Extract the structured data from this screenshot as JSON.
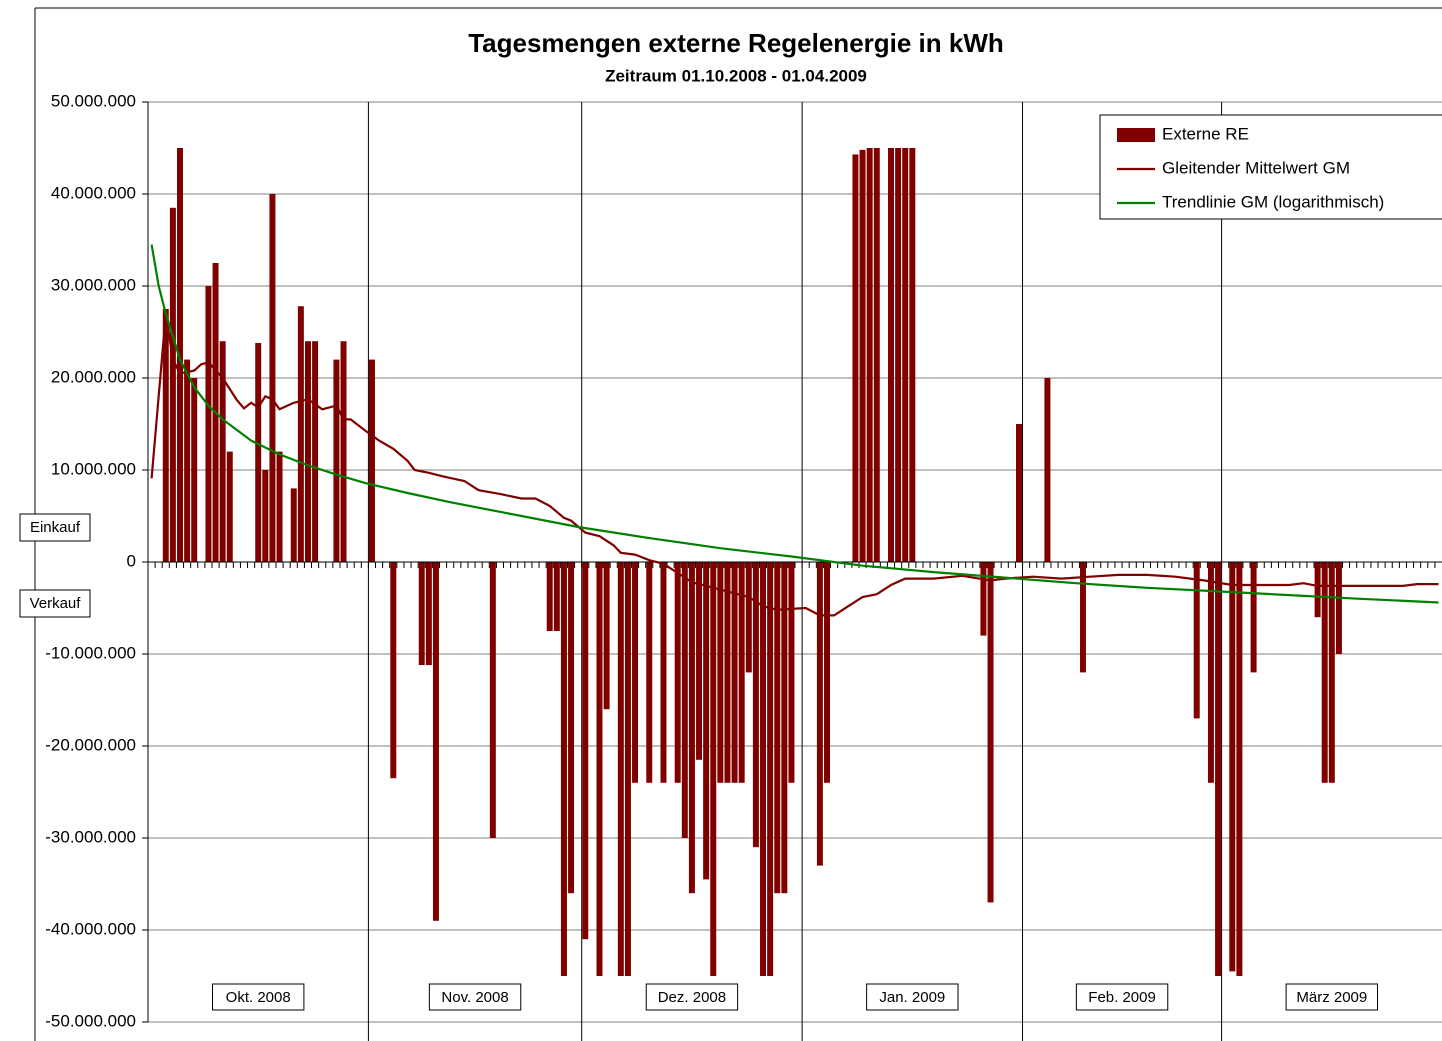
{
  "chart_data": {
    "type": "bar",
    "title": "Tagesmengen externe Regelenergie in kWh",
    "subtitle": "Zeitraum 01.10.2008 - 01.04.2009",
    "annotations": [
      "Einkauf",
      "Verkauf"
    ],
    "categories": [
      "Okt. 2008",
      null,
      null,
      null,
      null,
      null,
      null,
      null,
      null,
      null,
      null,
      null,
      null,
      null,
      null,
      null,
      null,
      null,
      null,
      null,
      null,
      null,
      null,
      null,
      null,
      null,
      null,
      null,
      null,
      null,
      null,
      "Nov. 2008",
      null,
      null,
      null,
      null,
      null,
      null,
      null,
      null,
      null,
      null,
      null,
      null,
      null,
      null,
      null,
      null,
      null,
      null,
      null,
      null,
      null,
      null,
      null,
      null,
      null,
      null,
      null,
      null,
      null,
      "Dez. 2008",
      null,
      null,
      null,
      null,
      null,
      null,
      null,
      null,
      null,
      null,
      null,
      null,
      null,
      null,
      null,
      null,
      null,
      null,
      null,
      null,
      null,
      null,
      null,
      null,
      null,
      null,
      null,
      null,
      null,
      null,
      "Jan. 2009",
      null,
      null,
      null,
      null,
      null,
      null,
      null,
      null,
      null,
      null,
      null,
      null,
      null,
      null,
      null,
      null,
      null,
      null,
      null,
      null,
      null,
      null,
      null,
      null,
      null,
      null,
      null,
      null,
      null,
      null,
      "Feb. 2009",
      null,
      null,
      null,
      null,
      null,
      null,
      null,
      null,
      null,
      null,
      null,
      null,
      null,
      null,
      null,
      null,
      null,
      null,
      null,
      null,
      null,
      null,
      null,
      null,
      null,
      null,
      null,
      "März 2009",
      null,
      null,
      null,
      null,
      null,
      null,
      null,
      null,
      null,
      null,
      null,
      null,
      null,
      null,
      null,
      null,
      null,
      null,
      null,
      null,
      null,
      null,
      null,
      null,
      null,
      null,
      null,
      null,
      null,
      null
    ],
    "series": [
      {
        "name": "Externe RE",
        "type": "bar",
        "color": "#800000",
        "values": [
          0,
          0,
          27500000,
          38500000,
          45000000,
          22000000,
          20000000,
          0,
          30000000,
          32500000,
          24000000,
          12000000,
          0,
          0,
          0,
          23800000,
          10000000,
          40000000,
          12000000,
          0,
          8000000,
          27800000,
          24000000,
          24000000,
          0,
          0,
          22000000,
          24000000,
          0,
          0,
          0,
          22000000,
          0,
          0,
          -23500000,
          0,
          0,
          0,
          -11200000,
          -11200000,
          -39000000,
          0,
          0,
          0,
          0,
          0,
          0,
          0,
          -30000000,
          0,
          0,
          0,
          0,
          0,
          0,
          0,
          -7500000,
          -7500000,
          -45000000,
          -36000000,
          0,
          -41000000,
          0,
          -45000000,
          -16000000,
          0,
          -45000000,
          -45000000,
          -24000000,
          0,
          -24000000,
          0,
          -24000000,
          0,
          -24000000,
          -30000000,
          -36000000,
          -21500000,
          -34500000,
          -45000000,
          -24000000,
          -24000000,
          -24000000,
          -24000000,
          -12000000,
          -31000000,
          -45000000,
          -45000000,
          -36000000,
          -36000000,
          -24000000,
          0,
          0,
          0,
          -33000000,
          -24000000,
          0,
          0,
          0,
          44300000,
          44800000,
          45000000,
          45000000,
          0,
          45000000,
          45000000,
          45000000,
          45000000,
          0,
          0,
          0,
          0,
          0,
          0,
          0,
          0,
          0,
          -8000000,
          -37000000,
          0,
          0,
          0,
          15000000,
          0,
          0,
          0,
          20000000,
          0,
          0,
          0,
          0,
          -12000000,
          0,
          0,
          0,
          0,
          0,
          0,
          0,
          0,
          0,
          0,
          0,
          0,
          0,
          0,
          0,
          -17000000,
          0,
          -24000000,
          -45000000,
          0,
          -44500000,
          -45000000,
          0,
          -12000000,
          0,
          0,
          0,
          0,
          0,
          0,
          0,
          0,
          -6000000,
          -24000000,
          -24000000,
          -10000000,
          0,
          0,
          0,
          0,
          0,
          0,
          0,
          0,
          0,
          0,
          0,
          0,
          0,
          0
        ]
      },
      {
        "name": "Gleitender Mittelwert GM",
        "type": "line",
        "color": "#800000",
        "x": [
          0,
          2,
          3,
          4,
          6,
          7,
          8,
          10,
          12,
          13,
          14,
          15,
          16,
          17,
          18,
          20,
          22,
          24,
          26,
          27,
          28,
          30,
          32,
          34,
          36,
          37,
          39,
          41,
          44,
          46,
          49,
          52,
          54,
          56,
          58,
          59,
          61,
          63,
          65,
          66,
          68,
          70,
          72,
          74,
          76,
          80,
          84,
          86,
          88,
          92,
          94,
          96,
          98,
          100,
          102,
          104,
          106,
          110,
          114,
          118,
          120,
          124,
          128,
          132,
          136,
          140,
          144,
          148,
          152,
          156,
          160,
          162,
          164,
          170,
          176,
          178,
          181
        ],
        "values": [
          9100000,
          27000000,
          22000000,
          20500000,
          20800000,
          21500000,
          21700000,
          20000000,
          17600000,
          16700000,
          17300000,
          16800000,
          18000000,
          17700000,
          16600000,
          17300000,
          17700000,
          16600000,
          17000000,
          15500000,
          15500000,
          14300000,
          13200000,
          12300000,
          11000000,
          10000000,
          9700000,
          9300000,
          8800000,
          7800000,
          7400000,
          6900000,
          6900000,
          6100000,
          4800000,
          4500000,
          3200000,
          2800000,
          1800000,
          1000000,
          800000,
          200000,
          -200000,
          -1200000,
          -2200000,
          -3000000,
          -3800000,
          -4800000,
          -5200000,
          -5000000,
          -5800000,
          -5800000,
          -4800000,
          -3800000,
          -3500000,
          -2500000,
          -1800000,
          -1800000,
          -1500000,
          -2000000,
          -1800000,
          -1600000,
          -1800000,
          -1600000,
          -1400000,
          -1400000,
          -1600000,
          -2000000,
          -2500000,
          -2500000,
          -2500000,
          -2300000,
          -2600000,
          -2600000,
          -2600000,
          -2400000,
          -2400000
        ]
      },
      {
        "name": "Trendlinie GM (logarithmisch)",
        "type": "line",
        "color": "#008000",
        "x": [
          0,
          1,
          2,
          4,
          6,
          8,
          10,
          14,
          18,
          22,
          26,
          30,
          36,
          42,
          50,
          60,
          70,
          80,
          90,
          100,
          110,
          120,
          130,
          140,
          150,
          160,
          170,
          181
        ],
        "values": [
          34500000,
          30000000,
          27000000,
          22000000,
          19000000,
          17000000,
          15500000,
          13200000,
          11700000,
          10500000,
          9500000,
          8600000,
          7500000,
          6500000,
          5300000,
          3800000,
          2600000,
          1500000,
          600000,
          -400000,
          -1100000,
          -1700000,
          -2300000,
          -2800000,
          -3200000,
          -3600000,
          -4000000,
          -4400000
        ]
      }
    ],
    "ylim": [
      -50000000,
      50000000
    ],
    "yticks": [
      {
        "value": -50000000,
        "label": "-50.000.000"
      },
      {
        "value": -40000000,
        "label": "-40.000.000"
      },
      {
        "value": -30000000,
        "label": "-30.000.000"
      },
      {
        "value": -20000000,
        "label": "-20.000.000"
      },
      {
        "value": -10000000,
        "label": "-10.000.000"
      },
      0,
      {
        "value": 10000000,
        "label": "10.000.000"
      },
      {
        "value": 20000000,
        "label": "20.000.000"
      },
      {
        "value": 30000000,
        "label": "30.000.000"
      },
      {
        "value": 40000000,
        "label": "40.000.000"
      },
      {
        "value": 50000000,
        "label": "50.000.000"
      }
    ],
    "grid": true,
    "legend": "upper right"
  }
}
